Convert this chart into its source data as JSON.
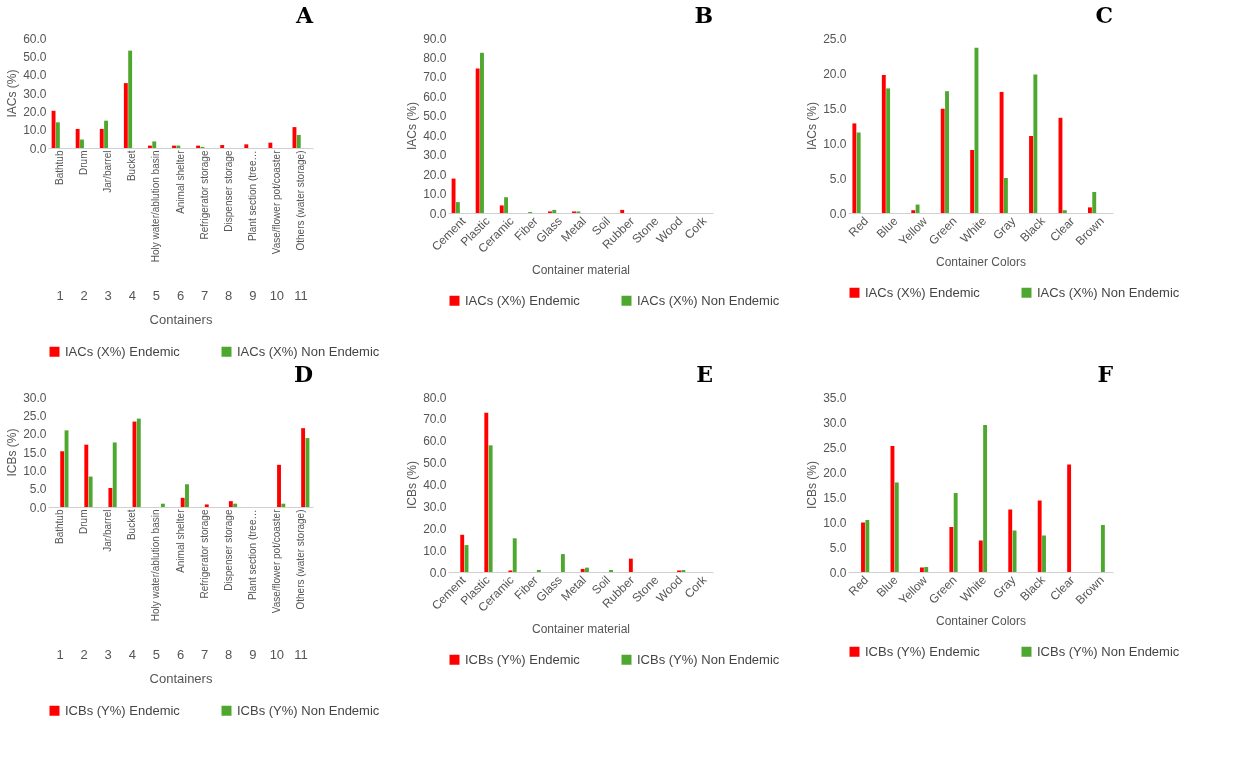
{
  "chart_data": [
    {
      "type": "bar",
      "title": "A",
      "xlabel": "Containers",
      "ylabel": "IACs (%)",
      "legend": "bottom",
      "categories": [
        "Bathtub",
        "Drum",
        "Jar/barrel",
        "Bucket",
        "Holy water/ablution basin",
        "Animal shelter",
        "Refrigerator storage",
        "Dispenser storage",
        "Plant section (tree…",
        "Vase/flower pot/coaster",
        "Others (water storage)"
      ],
      "series": [
        {
          "name": "IACs (X%) Endemic",
          "color": "#ff0000",
          "values": [
            20.3,
            10.4,
            10.4,
            35.4,
            1.3,
            1.3,
            1.3,
            1.6,
            2.0,
            2.9,
            11.4
          ]
        },
        {
          "name": "IACs (X%) Non Endemic",
          "color": "#4ea72e",
          "values": [
            14.0,
            4.6,
            14.9,
            53.1,
            3.6,
            1.3,
            0.6,
            0,
            0,
            0,
            7.1
          ]
        }
      ],
      "ylim": [
        0,
        60
      ],
      "yticks": [
        {
          "value": 0,
          "label": "0.0"
        },
        {
          "value": 10,
          "label": "10.0"
        },
        {
          "value": 20,
          "label": "20.0"
        },
        {
          "value": 30,
          "label": "30.0"
        },
        {
          "value": 40,
          "label": "40.0"
        },
        {
          "value": 50,
          "label": "50.0"
        },
        {
          "value": 60,
          "label": "60.0"
        }
      ],
      "annotations": [
        "1",
        "2",
        "3",
        "4",
        "5",
        "6",
        "7",
        "8",
        "9",
        "10",
        "11"
      ]
    },
    {
      "type": "bar",
      "title": "B",
      "xlabel": "Container material",
      "ylabel": "IACs (%)",
      "legend": "bottom",
      "categories": [
        "Cement",
        "Plastic",
        "Ceramic",
        "Fiber",
        "Glass",
        "Metal",
        "Soil",
        "Rubber",
        "Stone",
        "Wood",
        "Cork"
      ],
      "series": [
        {
          "name": "IACs (X%) Endemic",
          "color": "#ff0000",
          "values": [
            17.7,
            74.3,
            3.9,
            0,
            0.8,
            0.8,
            0,
            1.6,
            0,
            0,
            0
          ]
        },
        {
          "name": "IACs (X%) Non Endemic",
          "color": "#4ea72e",
          "values": [
            5.6,
            82.4,
            8.1,
            0.5,
            1.6,
            0.8,
            0,
            0,
            0,
            0,
            0
          ]
        }
      ],
      "ylim": [
        0,
        90
      ],
      "yticks": [
        {
          "value": 0,
          "label": "0.0"
        },
        {
          "value": 10,
          "label": "10.0"
        },
        {
          "value": 20,
          "label": "20.0"
        },
        {
          "value": 30,
          "label": "30.0"
        },
        {
          "value": 40,
          "label": "40.0"
        },
        {
          "value": 50,
          "label": "50.0"
        },
        {
          "value": 60,
          "label": "60.0"
        },
        {
          "value": 70,
          "label": "70.0"
        },
        {
          "value": 80,
          "label": "80.0"
        },
        {
          "value": 90,
          "label": "90.0"
        }
      ]
    },
    {
      "type": "bar",
      "title": "C",
      "xlabel": "Container Colors",
      "ylabel": "IACs (%)",
      "legend": "bottom",
      "categories": [
        "Red",
        "Blue",
        "Yellow",
        "Green",
        "White",
        "Gray",
        "Black",
        "Clear",
        "Brown"
      ],
      "series": [
        {
          "name": "IACs (X%) Endemic",
          "color": "#ff0000",
          "values": [
            12.8,
            19.7,
            0.4,
            14.9,
            9.0,
            17.3,
            11.0,
            13.6,
            0.8
          ]
        },
        {
          "name": "IACs (X%) Non Endemic",
          "color": "#4ea72e",
          "values": [
            11.5,
            17.8,
            1.2,
            17.4,
            23.6,
            5.0,
            19.8,
            0.4,
            3.0
          ]
        }
      ],
      "ylim": [
        0,
        25
      ],
      "yticks": [
        {
          "value": 0,
          "label": "0.0"
        },
        {
          "value": 5,
          "label": "5.0"
        },
        {
          "value": 10,
          "label": "10.0"
        },
        {
          "value": 15,
          "label": "15.0"
        },
        {
          "value": 20,
          "label": "20.0"
        },
        {
          "value": 25,
          "label": "25.0"
        }
      ]
    },
    {
      "type": "bar",
      "title": "D",
      "xlabel": "Containers",
      "ylabel": "ICBs (%)",
      "legend": "bottom",
      "categories": [
        "Bathtub",
        "Drum",
        "Jar/barrel",
        "Bucket",
        "Holy water/ablution basin",
        "Animal shelter",
        "Refrigerator storage",
        "Dispenser storage",
        "Plant section (tree…",
        "Vase/flower pot/coaster",
        "Others (water storage)"
      ],
      "series": [
        {
          "name": "ICBs (Y%) Endemic",
          "color": "#ff0000",
          "values": [
            15.2,
            17.0,
            5.2,
            23.3,
            0,
            2.5,
            0.7,
            1.6,
            0,
            11.5,
            21.5
          ]
        },
        {
          "name": "ICBs (Y%) Non Endemic",
          "color": "#4ea72e",
          "values": [
            20.9,
            8.3,
            17.6,
            24.1,
            0.9,
            6.2,
            0,
            0.9,
            0,
            0.9,
            18.8
          ]
        }
      ],
      "ylim": [
        0,
        30
      ],
      "yticks": [
        {
          "value": 0,
          "label": "0.0"
        },
        {
          "value": 5,
          "label": "5.0"
        },
        {
          "value": 10,
          "label": "10.0"
        },
        {
          "value": 15,
          "label": "15.0"
        },
        {
          "value": 20,
          "label": "20.0"
        },
        {
          "value": 25,
          "label": "25.0"
        },
        {
          "value": 30,
          "label": "30.0"
        }
      ],
      "annotations": [
        "1",
        "2",
        "3",
        "4",
        "5",
        "6",
        "7",
        "8",
        "9",
        "10",
        "11"
      ]
    },
    {
      "type": "bar",
      "title": "E",
      "xlabel": "Container material",
      "ylabel": "ICBs (%)",
      "legend": "bottom",
      "categories": [
        "Cement",
        "Plastic",
        "Ceramic",
        "Fiber",
        "Glass",
        "Metal",
        "Soil",
        "Rubber",
        "Stone",
        "Wood",
        "Cork"
      ],
      "series": [
        {
          "name": "ICBs (Y%) Endemic",
          "color": "#ff0000",
          "values": [
            17.0,
            72.8,
            0.7,
            0,
            0,
            1.4,
            0,
            6.1,
            0,
            0.7,
            0
          ]
        },
        {
          "name": "ICBs (Y%) Non Endemic",
          "color": "#4ea72e",
          "values": [
            12.3,
            57.9,
            15.4,
            0.9,
            8.2,
            2.0,
            0.9,
            0,
            0,
            0.9,
            0
          ]
        }
      ],
      "ylim": [
        0,
        80
      ],
      "yticks": [
        {
          "value": 0,
          "label": "0.0"
        },
        {
          "value": 10,
          "label": "10.0"
        },
        {
          "value": 20,
          "label": "20.0"
        },
        {
          "value": 30,
          "label": "30.0"
        },
        {
          "value": 40,
          "label": "40.0"
        },
        {
          "value": 50,
          "label": "50.0"
        },
        {
          "value": 60,
          "label": "60.0"
        },
        {
          "value": 70,
          "label": "70.0"
        },
        {
          "value": 80,
          "label": "80.0"
        }
      ]
    },
    {
      "type": "bar",
      "title": "F",
      "xlabel": "Container Colors",
      "ylabel": "ICBs (%)",
      "legend": "bottom",
      "categories": [
        "Red",
        "Blue",
        "Yellow",
        "Green",
        "White",
        "Gray",
        "Black",
        "Clear",
        "Brown"
      ],
      "series": [
        {
          "name": "ICBs (Y%) Endemic",
          "color": "#ff0000",
          "values": [
            9.9,
            25.2,
            0.9,
            9.0,
            6.3,
            12.5,
            14.3,
            21.5,
            0
          ]
        },
        {
          "name": "ICBs (Y%) Non Endemic",
          "color": "#4ea72e",
          "values": [
            10.4,
            17.9,
            1.0,
            15.8,
            29.4,
            8.3,
            7.3,
            0,
            9.4
          ]
        }
      ],
      "ylim": [
        0,
        35
      ],
      "yticks": [
        {
          "value": 0,
          "label": "0.0"
        },
        {
          "value": 5,
          "label": "5.0"
        },
        {
          "value": 10,
          "label": "10.0"
        },
        {
          "value": 15,
          "label": "15.0"
        },
        {
          "value": 20,
          "label": "20.0"
        },
        {
          "value": 25,
          "label": "25.0"
        },
        {
          "value": 30,
          "label": "30.0"
        },
        {
          "value": 35,
          "label": "35.0"
        }
      ]
    }
  ]
}
